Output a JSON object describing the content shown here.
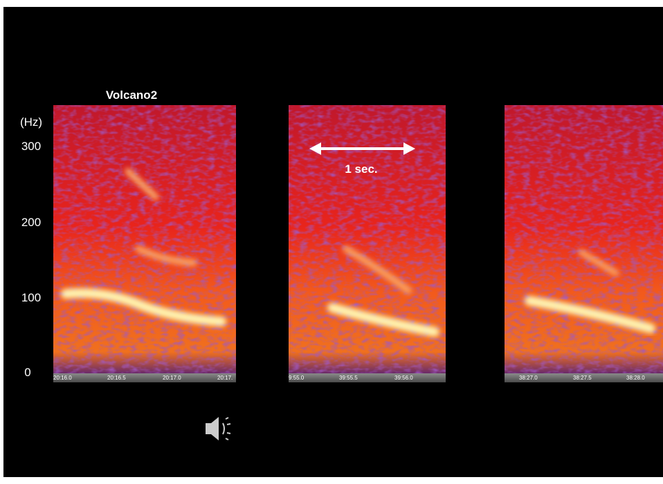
{
  "slide": {
    "title": "Volcano2",
    "axis": {
      "unit": "(Hz)",
      "ticks": [
        "300",
        "200",
        "100",
        "0"
      ]
    },
    "panels": [
      {
        "time_labels": [
          "20:16.0",
          "20:16.5",
          "20:17.0",
          "20:17."
        ]
      },
      {
        "time_labels": [
          "9:55.0",
          "39:55.5",
          "39:56.0"
        ]
      },
      {
        "time_labels": [
          "38:27.0",
          "38:27.5",
          "38:28.0"
        ]
      }
    ],
    "annotation": "1 sec."
  }
}
